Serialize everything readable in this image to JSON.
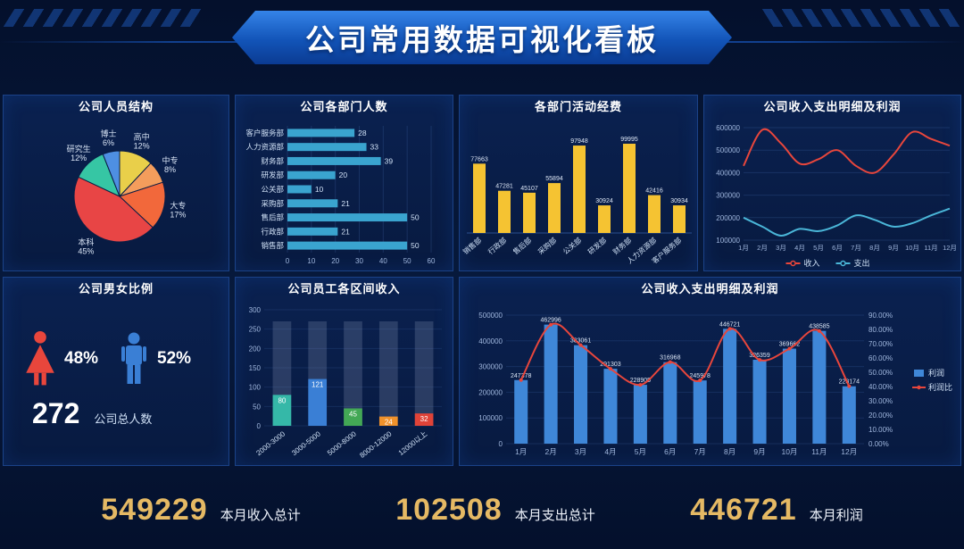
{
  "header": {
    "title": "公司常用数据可视化看板"
  },
  "panels": {
    "pie": {
      "title": "公司人员结构"
    },
    "dept": {
      "title": "公司各部门人数"
    },
    "funds": {
      "title": "各部门活动经费"
    },
    "lines": {
      "title": "公司收入支出明细及利润"
    },
    "gender": {
      "title": "公司男女比例",
      "female_pct": "48%",
      "male_pct": "52%",
      "total": "272",
      "total_label": "公司总人数"
    },
    "salary": {
      "title": "公司员工各区间收入"
    },
    "combo": {
      "title": "公司收入支出明细及利润"
    }
  },
  "footer": [
    {
      "value": "549229",
      "label": "本月收入总计"
    },
    {
      "value": "102508",
      "label": "本月支出总计"
    },
    {
      "value": "446721",
      "label": "本月利润"
    }
  ],
  "colors": {
    "accent_gold": "#e5b964",
    "banner_blue": "#1254b8",
    "panel_border": "#1b4288"
  },
  "chart_data": [
    {
      "id": "staff-structure-pie",
      "type": "pie",
      "title": "公司人员结构",
      "slices": [
        {
          "label": "高中",
          "pct": 12,
          "color": "#e9cf4a"
        },
        {
          "label": "中专",
          "pct": 8,
          "color": "#f49d5c"
        },
        {
          "label": "大专",
          "pct": 17,
          "color": "#f2683b"
        },
        {
          "label": "本科",
          "pct": 45,
          "color": "#e84545"
        },
        {
          "label": "研究生",
          "pct": 12,
          "color": "#36c6a4"
        },
        {
          "label": "博士",
          "pct": 6,
          "color": "#4e8fe2"
        }
      ]
    },
    {
      "id": "dept-headcount-bar",
      "type": "bar",
      "orientation": "horizontal",
      "title": "公司各部门人数",
      "categories": [
        "客户服务部",
        "人力资源部",
        "财务部",
        "研发部",
        "公关部",
        "采购部",
        "售后部",
        "行政部",
        "销售部"
      ],
      "values": [
        28,
        33,
        39,
        20,
        10,
        21,
        50,
        21,
        50
      ],
      "xlim": [
        0,
        60
      ],
      "xticks": [
        0,
        10,
        20,
        30,
        40,
        50,
        60
      ],
      "bar_color": "#3aa4cf"
    },
    {
      "id": "dept-funds-bar",
      "type": "bar",
      "orientation": "vertical",
      "title": "各部门活动经费",
      "categories": [
        "销售部",
        "行政部",
        "售后部",
        "采购部",
        "公关部",
        "研发部",
        "财务部",
        "人力资源部",
        "客户服务部"
      ],
      "values": [
        77663,
        47281,
        45107,
        55894,
        97948,
        30924,
        99995,
        42416,
        30934
      ],
      "ylim": [
        0,
        112000
      ],
      "bar_color": "#f5c332"
    },
    {
      "id": "income-expense-line",
      "type": "line",
      "title": "公司收入支出明细及利润",
      "x": [
        "1月",
        "2月",
        "3月",
        "4月",
        "5月",
        "6月",
        "7月",
        "8月",
        "9月",
        "10月",
        "11月",
        "12月"
      ],
      "series": [
        {
          "name": "收入",
          "color": "#e8463c",
          "values": [
            430000,
            590000,
            530000,
            440000,
            460000,
            500000,
            430000,
            400000,
            480000,
            580000,
            550000,
            520000
          ]
        },
        {
          "name": "支出",
          "color": "#4ab6d8",
          "values": [
            200000,
            160000,
            120000,
            150000,
            140000,
            165000,
            210000,
            190000,
            160000,
            175000,
            210000,
            240000
          ]
        }
      ],
      "ylim": [
        100000,
        600000
      ],
      "yticks": [
        100000,
        200000,
        300000,
        400000,
        500000,
        600000
      ],
      "legend_position": "bottom"
    },
    {
      "id": "salary-range-bar",
      "type": "bar",
      "orientation": "vertical",
      "title": "公司员工各区间收入",
      "categories": [
        "2000-3000",
        "3000-5000",
        "5000-8000",
        "8000-12000",
        "12000以上"
      ],
      "values": [
        80,
        121,
        45,
        24,
        32
      ],
      "colors": [
        "#35b8a8",
        "#3a7fd5",
        "#43a855",
        "#f0922b",
        "#e04338"
      ],
      "background_bar_value": 270,
      "ylim": [
        0,
        300
      ],
      "yticks": [
        0,
        50,
        100,
        150,
        200,
        250,
        300
      ]
    },
    {
      "id": "profit-combo",
      "type": "bar+line",
      "title": "公司收入支出明细及利润",
      "x": [
        "1月",
        "2月",
        "3月",
        "4月",
        "5月",
        "6月",
        "7月",
        "8月",
        "9月",
        "10月",
        "11月",
        "12月"
      ],
      "bars": {
        "name": "利润",
        "color": "#3f87d8",
        "values": [
          247378,
          462996,
          383061,
          291303,
          228905,
          316968,
          245978,
          446721,
          326359,
          369662,
          438585,
          223174
        ]
      },
      "line": {
        "name": "利润比",
        "color": "#e8463c",
        "values_pct": [
          44.5,
          83.3,
          69.0,
          52.4,
          41.2,
          57.1,
          44.3,
          80.4,
          58.7,
          66.5,
          78.9,
          40.2
        ]
      },
      "ylim_left": [
        0,
        500000
      ],
      "yticks_left": [
        0,
        100000,
        200000,
        300000,
        400000,
        500000
      ],
      "ylim_right": [
        0,
        90
      ],
      "yticks_right_pct": [
        0,
        10,
        20,
        30,
        40,
        50,
        60,
        70,
        80,
        90
      ],
      "legend_position": "right"
    }
  ]
}
